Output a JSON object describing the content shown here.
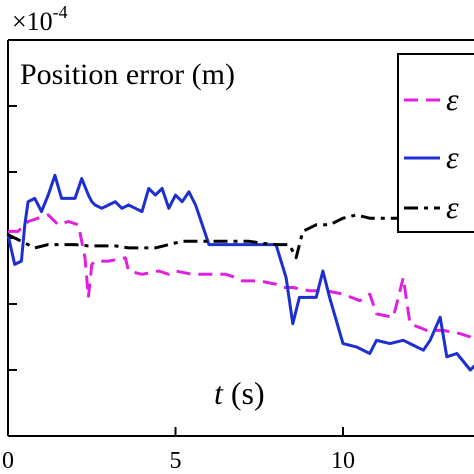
{
  "chart_data": {
    "type": "line",
    "title": "Position error (m)",
    "xlabel_var": "t",
    "xlabel_unit": "(s)",
    "y_scale_base": "×10",
    "y_scale_exp": "-4",
    "xlim": [
      0,
      14
    ],
    "ylim": [
      -3,
      3
    ],
    "x_ticks": [
      0,
      5,
      10
    ],
    "x_tick_labels": [
      "0",
      "5",
      "10"
    ],
    "y_ticks": [
      -3,
      -2,
      -1,
      0,
      1,
      2,
      3
    ],
    "grid": false,
    "legend_position": "top-right",
    "series": [
      {
        "name": "ε",
        "color": "#e020e0",
        "dash": "dashed",
        "x": [
          0,
          0.3,
          0.6,
          0.9,
          1.2,
          1.5,
          1.8,
          2.1,
          2.3,
          2.4,
          2.5,
          2.6,
          3.0,
          3.5,
          3.6,
          4.0,
          4.5,
          4.8,
          5.0,
          5.5,
          6.0,
          6.5,
          6.8,
          7.0,
          7.5,
          8.0,
          8.2,
          8.5,
          9.0,
          9.5,
          10.0,
          10.5,
          10.8,
          11.0,
          11.5,
          11.8,
          12.0,
          12.5,
          13.0,
          13.5,
          13.8,
          14.0
        ],
        "y": [
          0.1,
          0.1,
          0.25,
          0.3,
          0.35,
          0.2,
          0.25,
          0.2,
          -0.3,
          -0.9,
          -0.4,
          -0.35,
          -0.35,
          -0.3,
          -0.5,
          -0.55,
          -0.5,
          -0.55,
          -0.5,
          -0.55,
          -0.55,
          -0.55,
          -0.6,
          -0.65,
          -0.65,
          -0.7,
          -0.75,
          -0.75,
          -0.8,
          -0.8,
          -0.85,
          -0.95,
          -0.85,
          -1.15,
          -1.2,
          -0.6,
          -1.3,
          -1.4,
          -1.4,
          -1.45,
          -1.5,
          -1.6
        ]
      },
      {
        "name": "ε",
        "color": "#1e2fd0",
        "dash": "solid",
        "x": [
          0,
          0.2,
          0.4,
          0.5,
          0.6,
          0.8,
          1.0,
          1.2,
          1.4,
          1.6,
          1.8,
          2.0,
          2.2,
          2.4,
          2.5,
          2.6,
          2.8,
          3.0,
          3.2,
          3.4,
          3.6,
          3.8,
          4.0,
          4.2,
          4.4,
          4.6,
          4.8,
          5.0,
          5.2,
          5.4,
          5.6,
          6.0,
          6.5,
          7.0,
          7.5,
          8.0,
          8.3,
          8.5,
          8.7,
          9.0,
          9.2,
          9.4,
          9.6,
          10.0,
          10.4,
          10.8,
          11.0,
          11.4,
          11.8,
          12.0,
          12.4,
          12.6,
          12.9,
          13.1,
          13.4,
          13.8,
          14.0
        ],
        "y": [
          0.05,
          -0.4,
          -0.35,
          0.2,
          0.55,
          0.6,
          0.4,
          0.65,
          0.95,
          0.6,
          0.6,
          0.6,
          0.9,
          0.65,
          0.55,
          0.5,
          0.45,
          0.5,
          0.55,
          0.45,
          0.5,
          0.45,
          0.4,
          0.75,
          0.65,
          0.75,
          0.45,
          0.65,
          0.55,
          0.7,
          0.5,
          -0.1,
          -0.1,
          -0.1,
          -0.1,
          -0.1,
          -0.6,
          -1.3,
          -0.9,
          -0.9,
          -0.9,
          -0.5,
          -0.9,
          -1.6,
          -1.65,
          -1.75,
          -1.55,
          -1.6,
          -1.55,
          -1.6,
          -1.7,
          -1.55,
          -1.2,
          -1.8,
          -1.75,
          -2.0,
          -1.9
        ]
      },
      {
        "name": "ε",
        "color": "#000000",
        "dash": "dashdot",
        "x": [
          0,
          0.4,
          0.8,
          1.2,
          1.6,
          2.0,
          2.4,
          2.8,
          3.2,
          3.6,
          4.0,
          4.4,
          4.8,
          5.2,
          5.6,
          6.0,
          6.4,
          6.8,
          7.2,
          7.6,
          8.0,
          8.4,
          8.6,
          8.8,
          9.2,
          9.6,
          10.0,
          10.4,
          10.8,
          11.2,
          11.6,
          12.0,
          12.4,
          12.8,
          13.2,
          13.6,
          14.0
        ],
        "y": [
          0.05,
          -0.05,
          -0.15,
          -0.1,
          -0.1,
          -0.1,
          -0.12,
          -0.12,
          -0.12,
          -0.15,
          -0.15,
          -0.15,
          -0.1,
          -0.05,
          -0.05,
          -0.05,
          -0.05,
          -0.05,
          -0.05,
          -0.08,
          -0.1,
          -0.1,
          -0.3,
          0.1,
          0.2,
          0.2,
          0.3,
          0.35,
          0.3,
          0.3,
          0.3,
          0.32,
          0.3,
          0.3,
          0.3,
          0.3,
          0.3
        ]
      }
    ]
  }
}
